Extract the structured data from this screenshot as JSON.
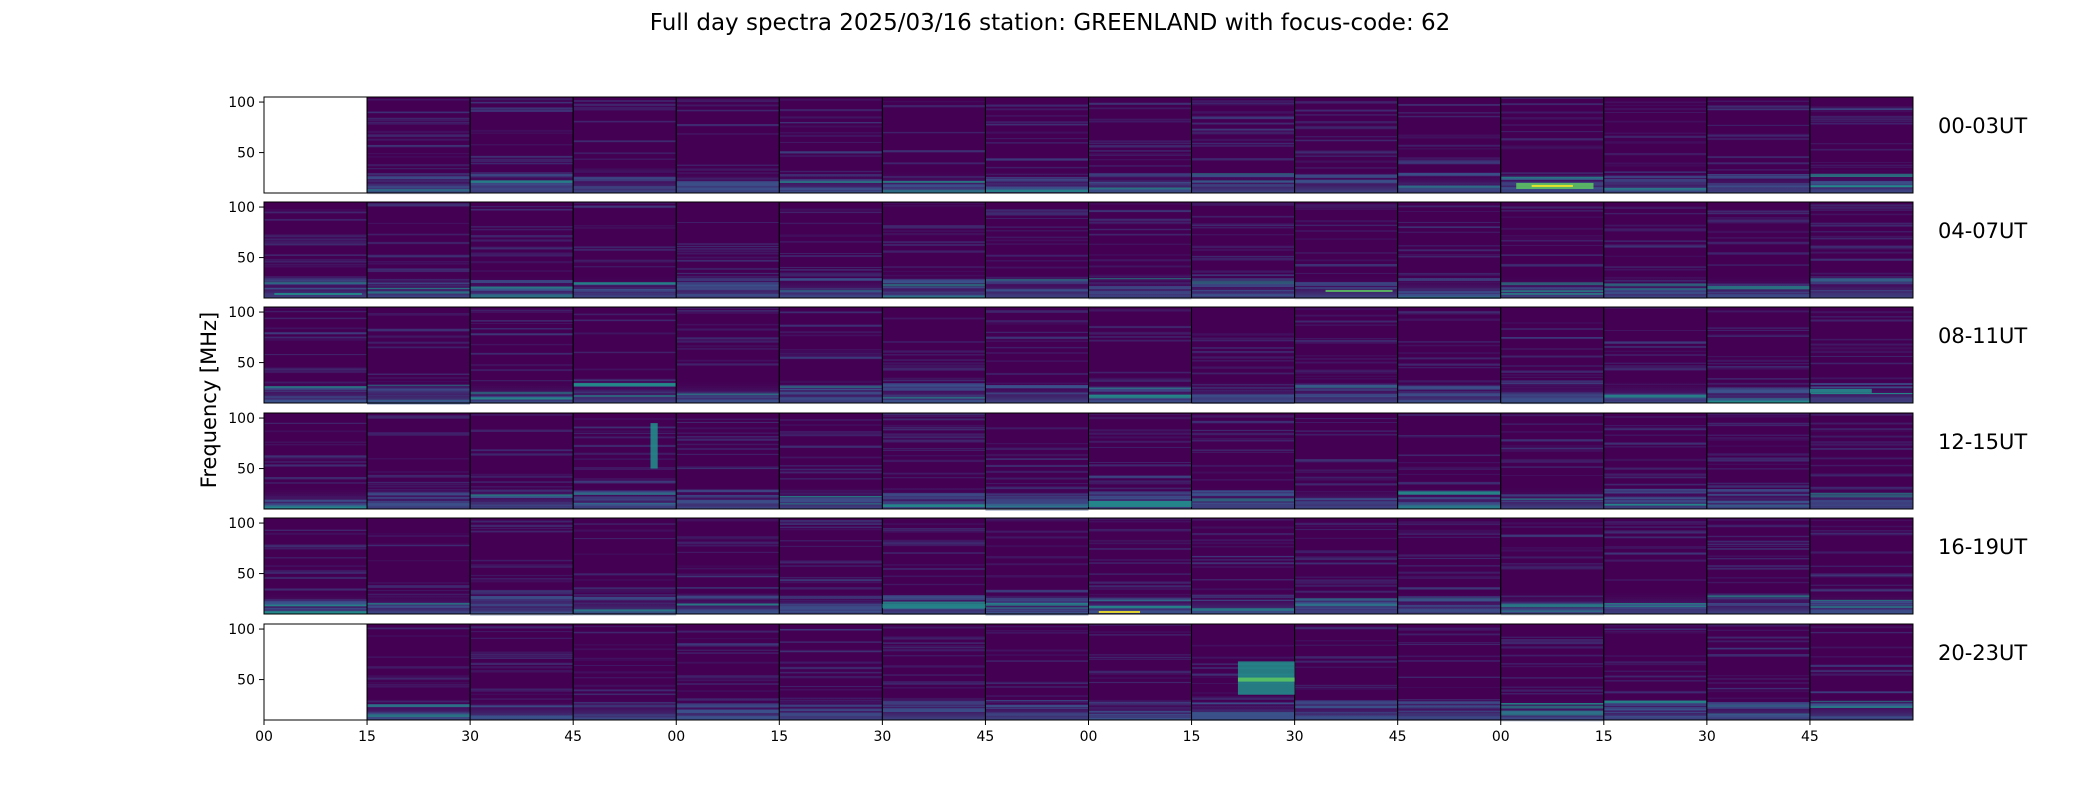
{
  "title": "Full day spectra 2025/03/16 station: GREENLAND with focus-code: 62",
  "chart_data": {
    "type": "heatmap",
    "title": "Full day spectra 2025/03/16 station: GREENLAND with focus-code: 62",
    "ylabel": "Frequency [MHz]",
    "xlabel": "",
    "colormap": "viridis",
    "ylim": [
      10,
      105
    ],
    "yticks": [
      50,
      100
    ],
    "xtick_labels": [
      "00",
      "15",
      "30",
      "45",
      "00",
      "15",
      "30",
      "45",
      "00",
      "15",
      "30",
      "45",
      "00",
      "15",
      "30",
      "45"
    ],
    "rows": [
      {
        "label": "00-03UT",
        "missing_panels": [
          0
        ]
      },
      {
        "label": "04-07UT",
        "missing_panels": []
      },
      {
        "label": "08-11UT",
        "missing_panels": []
      },
      {
        "label": "12-15UT",
        "missing_panels": []
      },
      {
        "label": "16-19UT",
        "missing_panels": []
      },
      {
        "label": "20-23UT",
        "missing_panels": [
          0
        ]
      }
    ],
    "panels_per_row": 16,
    "panel_minutes": 15,
    "colors": {
      "background": "#440154",
      "mid": "#3b528b",
      "teal": "#21918c",
      "green": "#5ec962",
      "yellow": "#fde725"
    }
  }
}
